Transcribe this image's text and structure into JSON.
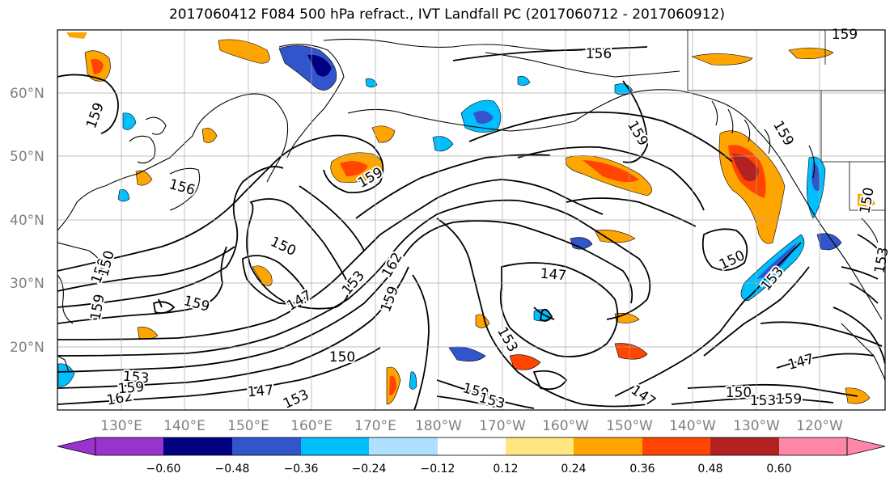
{
  "title": "2017060412 F084 500 hPa refract., IVT Landfall PC (2017060712 - 2017060912)",
  "latitude_labels": [
    "60°N",
    "50°N",
    "40°N",
    "30°N",
    "20°N"
  ],
  "longitude_labels": [
    "130°E",
    "140°E",
    "150°E",
    "160°E",
    "170°E",
    "180°W",
    "170°W",
    "160°W",
    "150°W",
    "140°W",
    "130°W",
    "120°W"
  ],
  "colorbar": {
    "colors": [
      "#9933cc",
      "#000080",
      "#3355cc",
      "#00bfff",
      "#b0e0ff",
      "#ffffff",
      "#ffe680",
      "#ffa500",
      "#ff4500",
      "#b22222",
      "#ff88aa"
    ],
    "tick_labels": [
      "−0.60",
      "−0.48",
      "−0.36",
      "−0.24",
      "−0.12",
      "0.12",
      "0.24",
      "0.36",
      "0.48",
      "0.60"
    ]
  },
  "contour_labels": [
    "156",
    "159",
    "156",
    "159",
    "159",
    "159",
    "150",
    "153",
    "162",
    "159",
    "150",
    "153",
    "147",
    "159",
    "159",
    "150",
    "147",
    "147",
    "153",
    "150",
    "147",
    "153",
    "150",
    "153",
    "159",
    "162",
    "150",
    "147",
    "153",
    "159",
    "159",
    "150",
    "153",
    "159",
    "153"
  ]
}
